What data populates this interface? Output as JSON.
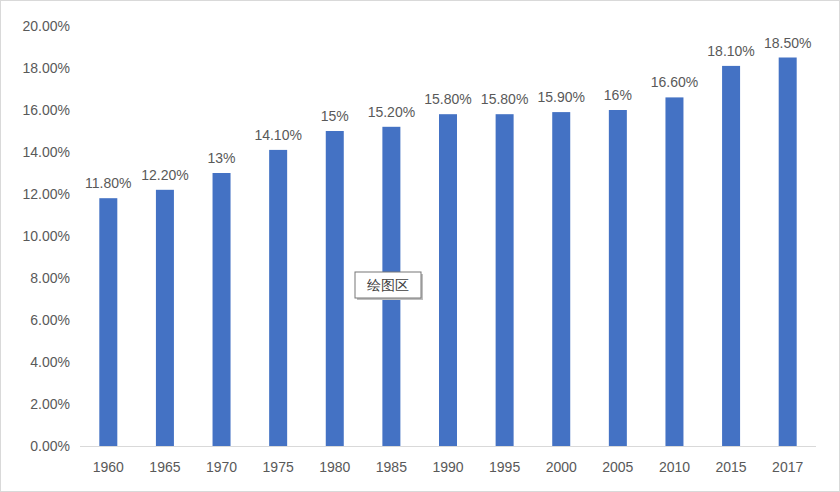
{
  "chart_data": {
    "type": "bar",
    "categories": [
      "1960",
      "1965",
      "1970",
      "1975",
      "1980",
      "1985",
      "1990",
      "1995",
      "2000",
      "2005",
      "2010",
      "2015",
      "2017"
    ],
    "values": [
      11.8,
      12.2,
      13,
      14.1,
      15,
      15.2,
      15.8,
      15.8,
      15.9,
      16,
      16.6,
      18.1,
      18.5
    ],
    "value_labels": [
      "11.80%",
      "12.20%",
      "13%",
      "14.10%",
      "15%",
      "15.20%",
      "15.80%",
      "15.80%",
      "15.90%",
      "16%",
      "16.60%",
      "18.10%",
      "18.50%"
    ],
    "color": "#4472c4",
    "ylim": [
      0,
      20
    ],
    "yticks": [
      {
        "value": 0,
        "label": "0.00%"
      },
      {
        "value": 2,
        "label": "2.00%"
      },
      {
        "value": 4,
        "label": "4.00%"
      },
      {
        "value": 6,
        "label": "6.00%"
      },
      {
        "value": 8,
        "label": "8.00%"
      },
      {
        "value": 10,
        "label": "10.00%"
      },
      {
        "value": 12,
        "label": "12.00%"
      },
      {
        "value": 14,
        "label": "14.00%"
      },
      {
        "value": 16,
        "label": "16.00%"
      },
      {
        "value": 18,
        "label": "18.00%"
      },
      {
        "value": 20,
        "label": "20.00%"
      }
    ],
    "grid": false,
    "data_labels": true,
    "annotations": [
      "绘图区"
    ]
  }
}
